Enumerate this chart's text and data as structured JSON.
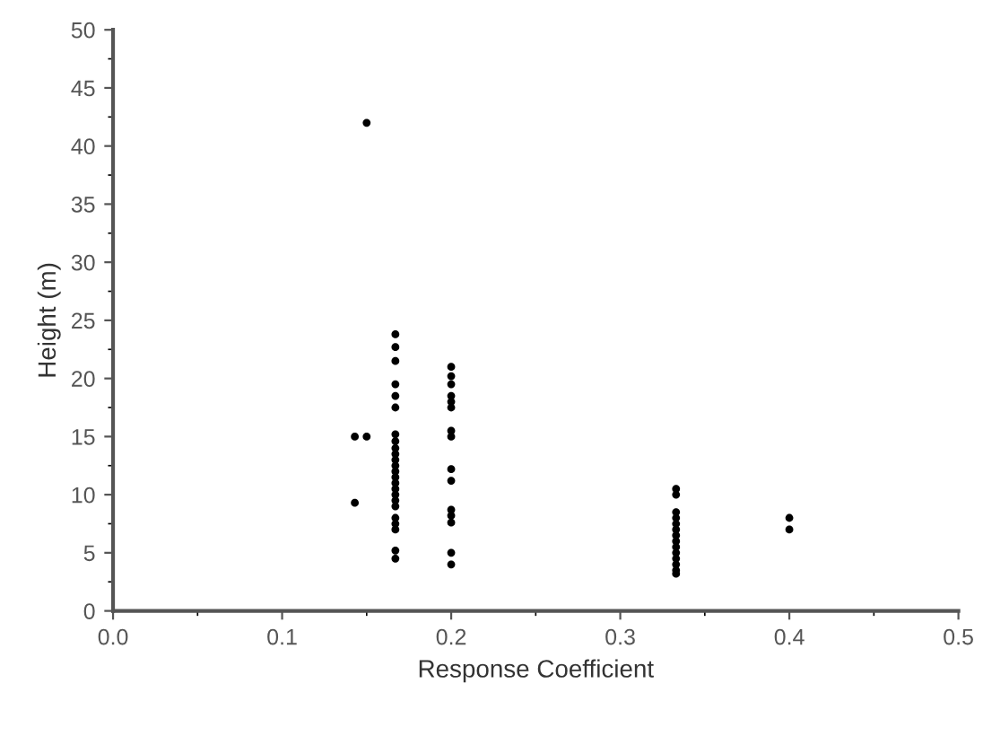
{
  "chart_data": {
    "type": "scatter",
    "xlabel": "Response Coefficient",
    "ylabel": "Height (m)",
    "x": [
      0.143,
      0.143,
      0.15,
      0.15,
      0.167,
      0.167,
      0.167,
      0.167,
      0.167,
      0.167,
      0.167,
      0.167,
      0.167,
      0.167,
      0.167,
      0.167,
      0.167,
      0.167,
      0.167,
      0.167,
      0.167,
      0.167,
      0.167,
      0.167,
      0.167,
      0.167,
      0.167,
      0.167,
      0.2,
      0.2,
      0.2,
      0.2,
      0.2,
      0.2,
      0.2,
      0.2,
      0.2,
      0.2,
      0.2,
      0.2,
      0.2,
      0.2,
      0.2,
      0.333,
      0.333,
      0.333,
      0.333,
      0.333,
      0.333,
      0.333,
      0.333,
      0.333,
      0.333,
      0.333,
      0.333,
      0.333,
      0.333,
      0.4,
      0.4
    ],
    "values": [
      9.3,
      15,
      15,
      42,
      23.8,
      22.7,
      21.5,
      19.5,
      18.5,
      17.5,
      15.2,
      14.6,
      14,
      13.5,
      13,
      12.5,
      12,
      11.5,
      11,
      10.5,
      10,
      9.5,
      9,
      8,
      7.5,
      7,
      5.2,
      4.5,
      21,
      20.2,
      19.5,
      18.5,
      18,
      17.5,
      15.5,
      15,
      12.2,
      11.2,
      8.7,
      8.2,
      7.6,
      5,
      4,
      10.5,
      10,
      8.5,
      8,
      7.5,
      7,
      6.5,
      6,
      5.5,
      5,
      4.5,
      4,
      3.5,
      3.2,
      8,
      7
    ],
    "color": "#000000",
    "marker": "circle",
    "xlim": [
      0,
      0.5
    ],
    "xticks": [
      {
        "value": 0,
        "label": "0.0"
      },
      0.1,
      0.2,
      0.3,
      0.4,
      0.5
    ],
    "ylim": [
      0,
      50
    ],
    "yticks": [
      0,
      5,
      10,
      15,
      20,
      25,
      30,
      35,
      40,
      45,
      50
    ],
    "grid": false,
    "legend": false
  }
}
